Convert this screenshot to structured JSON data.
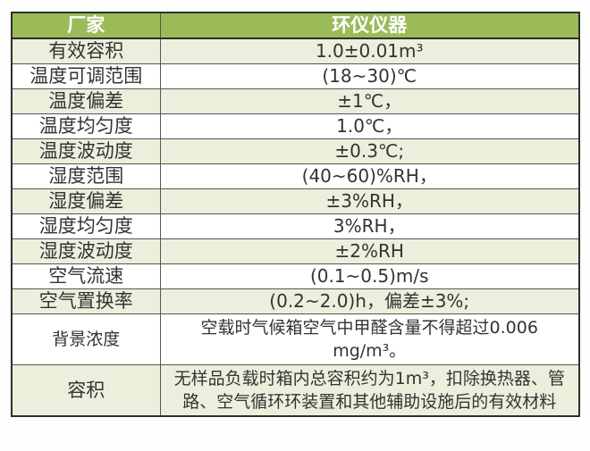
{
  "table": {
    "header": {
      "col1": "厂家",
      "col2": "环仪仪器"
    },
    "rows": [
      {
        "label": "有效容积",
        "value": "1.0±0.01m³"
      },
      {
        "label": "温度可调范围",
        "value": "(18~30)℃"
      },
      {
        "label": "温度偏差",
        "value": "±1℃，"
      },
      {
        "label": "温度均匀度",
        "value": "1.0℃，"
      },
      {
        "label": "温度波动度",
        "value": "±0.3℃;"
      },
      {
        "label": "湿度范围",
        "value": "(40~60)%RH，"
      },
      {
        "label": "湿度偏差",
        "value": "±3%RH，"
      },
      {
        "label": "湿度均匀度",
        "value": "3%RH，"
      },
      {
        "label": "湿度波动度",
        "value": "±2%RH"
      },
      {
        "label": "空气流速",
        "value": "(0.1~0.5)m/s"
      },
      {
        "label": "空气置换率",
        "value": "(0.2~2.0)h，偏差±3%;"
      },
      {
        "label": "背景浓度",
        "value": "空载时气候箱空气中甲醛含量不得超过0.006 mg/m³。"
      },
      {
        "label": "容积",
        "value": "无样品负载时箱内总容积约为1m³，扣除换热器、管路、空气循环环装置和其他辅助设施后的有效材料"
      }
    ],
    "colors": {
      "header_bg": "#9BBB59",
      "header_text": "#FFFFFF",
      "stripe_bg": "#EBF0DD",
      "row_bg": "#FFFFFF",
      "border": "#2F2F2F",
      "text": "#333333"
    }
  }
}
